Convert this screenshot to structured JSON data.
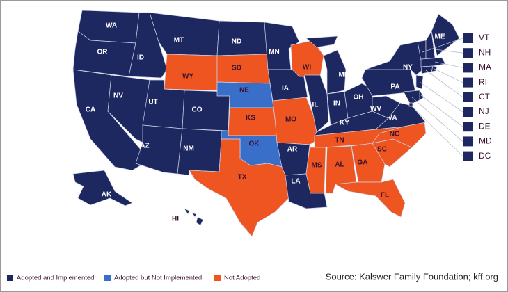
{
  "map": {
    "legend": [
      {
        "label": "Adopted and Implemented",
        "color": "#1e2860"
      },
      {
        "label": "Adopted but Not Implemented",
        "color": "#3a6fc9"
      },
      {
        "label": "Not Adopted",
        "color": "#ee5520"
      }
    ],
    "states": [
      {
        "label": "WA",
        "status": "Adopted and Implemented"
      },
      {
        "label": "OR",
        "status": "Adopted and Implemented"
      },
      {
        "label": "CA",
        "status": "Adopted and Implemented"
      },
      {
        "label": "NV",
        "status": "Adopted and Implemented"
      },
      {
        "label": "ID",
        "status": "Adopted and Implemented"
      },
      {
        "label": "MT",
        "status": "Adopted and Implemented"
      },
      {
        "label": "WY",
        "status": "Not Adopted"
      },
      {
        "label": "UT",
        "status": "Adopted and Implemented"
      },
      {
        "label": "CO",
        "status": "Adopted and Implemented"
      },
      {
        "label": "AZ",
        "status": "Adopted and Implemented"
      },
      {
        "label": "NM",
        "status": "Adopted and Implemented"
      },
      {
        "label": "ND",
        "status": "Adopted and Implemented"
      },
      {
        "label": "SD",
        "status": "Not Adopted"
      },
      {
        "label": "NE",
        "status": "Adopted but Not Implemented"
      },
      {
        "label": "KS",
        "status": "Not Adopted"
      },
      {
        "label": "OK",
        "status": "Adopted but Not Implemented"
      },
      {
        "label": "TX",
        "status": "Not Adopted"
      },
      {
        "label": "MN",
        "status": "Adopted and Implemented"
      },
      {
        "label": "IA",
        "status": "Adopted and Implemented"
      },
      {
        "label": "MO",
        "status": "Not Adopted"
      },
      {
        "label": "AR",
        "status": "Adopted and Implemented"
      },
      {
        "label": "LA",
        "status": "Adopted and Implemented"
      },
      {
        "label": "WI",
        "status": "Not Adopted"
      },
      {
        "label": "MI",
        "status": "Adopted and Implemented"
      },
      {
        "label": "IL",
        "status": "Adopted and Implemented"
      },
      {
        "label": "IN",
        "status": "Adopted and Implemented"
      },
      {
        "label": "OH",
        "status": "Adopted and Implemented"
      },
      {
        "label": "KY",
        "status": "Adopted and Implemented"
      },
      {
        "label": "TN",
        "status": "Not Adopted"
      },
      {
        "label": "MS",
        "status": "Not Adopted"
      },
      {
        "label": "AL",
        "status": "Not Adopted"
      },
      {
        "label": "GA",
        "status": "Not Adopted"
      },
      {
        "label": "FL",
        "status": "Not Adopted"
      },
      {
        "label": "SC",
        "status": "Not Adopted"
      },
      {
        "label": "NC",
        "status": "Not Adopted"
      },
      {
        "label": "VA",
        "status": "Adopted and Implemented"
      },
      {
        "label": "WV",
        "status": "Adopted and Implemented"
      },
      {
        "label": "PA",
        "status": "Adopted and Implemented"
      },
      {
        "label": "NY",
        "status": "Adopted and Implemented"
      },
      {
        "label": "ME",
        "status": "Adopted and Implemented"
      },
      {
        "label": "AK",
        "status": "Adopted and Implemented"
      },
      {
        "label": "HI",
        "status": "Adopted and Implemented"
      }
    ],
    "small_states": [
      {
        "label": "VT",
        "status": "Adopted and Implemented"
      },
      {
        "label": "NH",
        "status": "Adopted and Implemented"
      },
      {
        "label": "MA",
        "status": "Adopted and Implemented"
      },
      {
        "label": "RI",
        "status": "Adopted and Implemented"
      },
      {
        "label": "CT",
        "status": "Adopted and Implemented"
      },
      {
        "label": "NJ",
        "status": "Adopted and Implemented"
      },
      {
        "label": "DE",
        "status": "Adopted and Implemented"
      },
      {
        "label": "MD",
        "status": "Adopted and Implemented"
      },
      {
        "label": "DC",
        "status": "Adopted and Implemented"
      }
    ],
    "source": "Source: Kalswer Family Foundation; kff.org"
  }
}
